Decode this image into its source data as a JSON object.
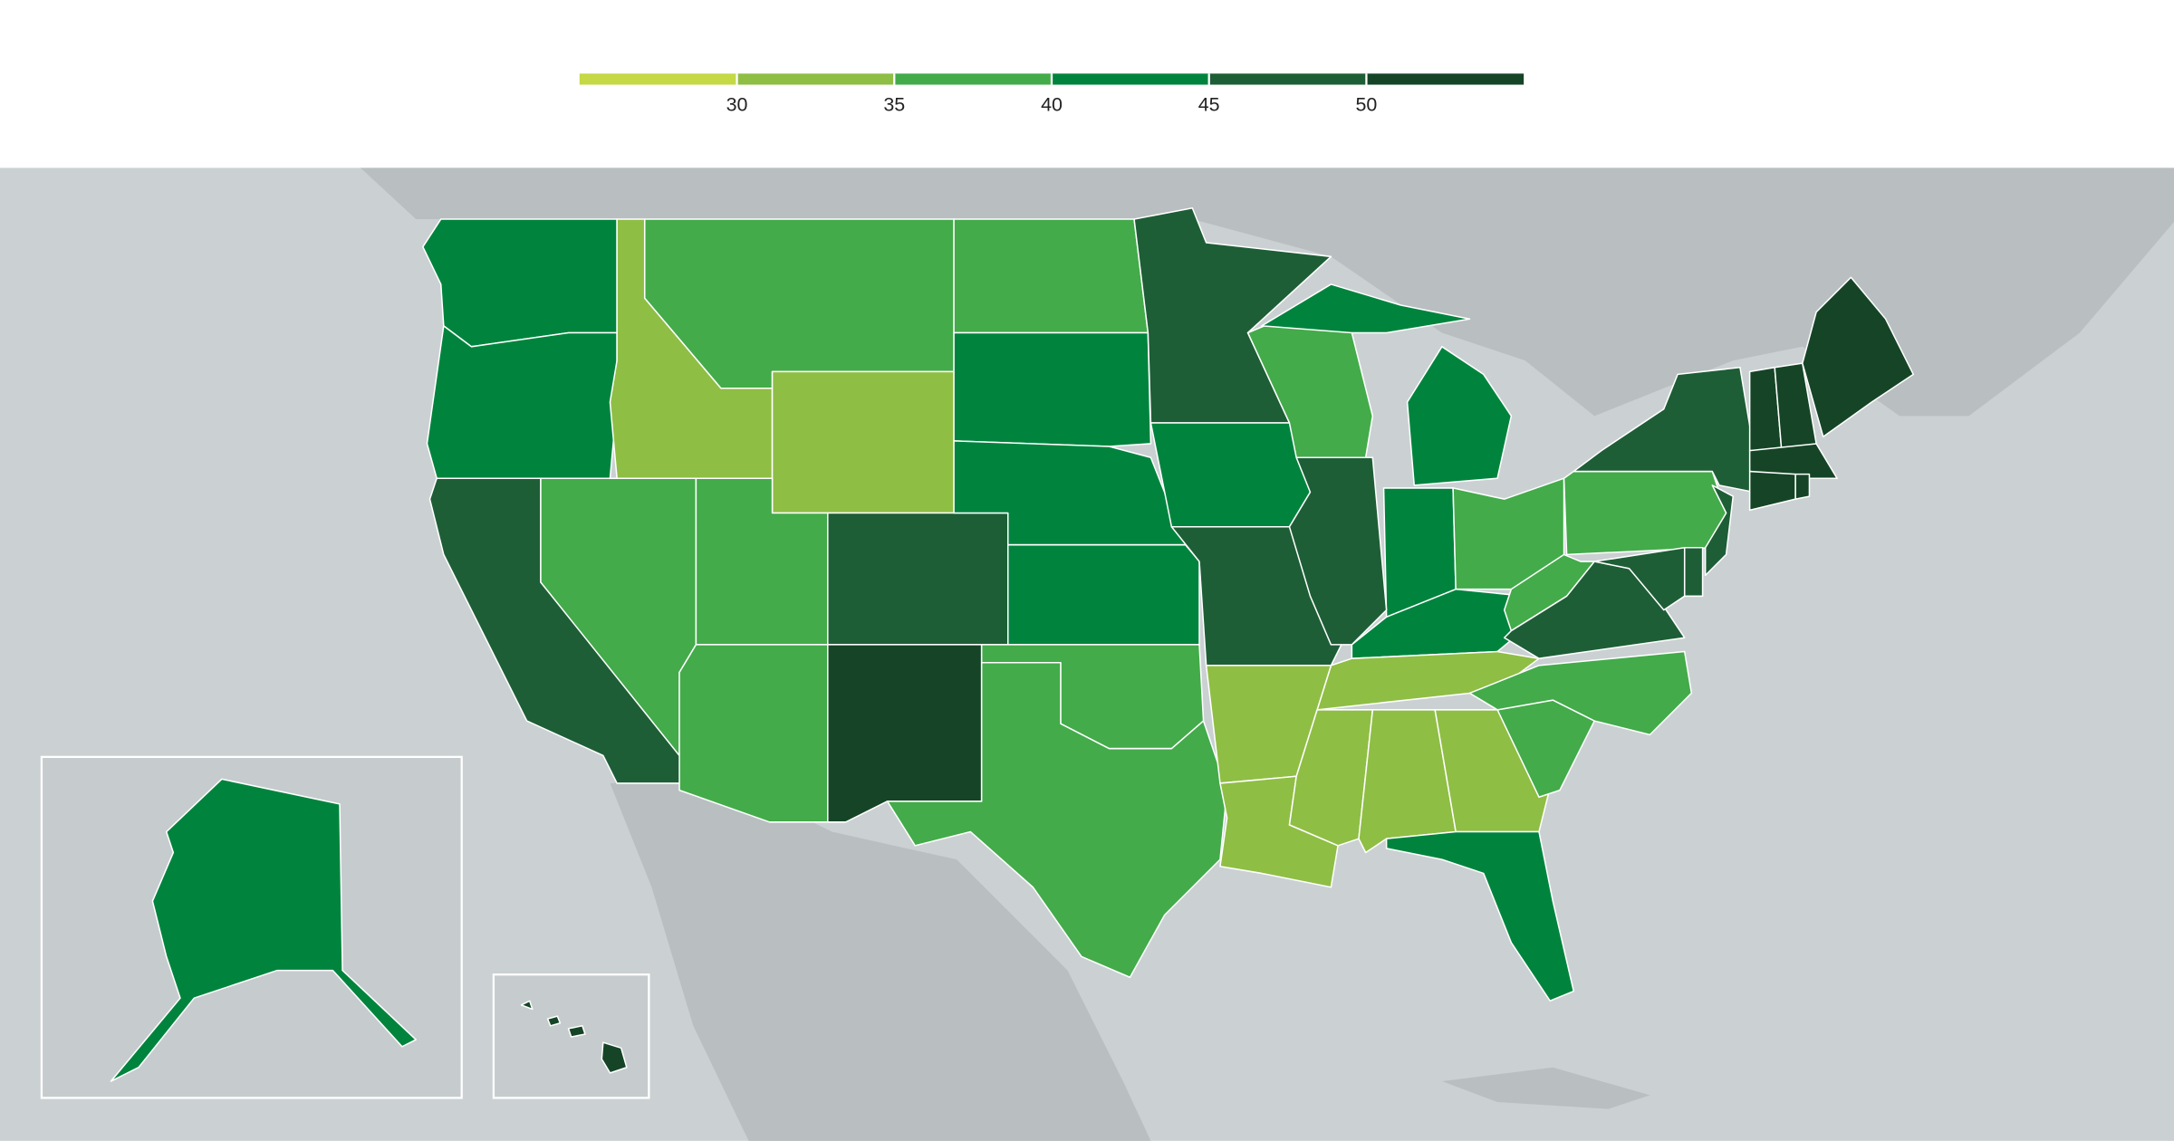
{
  "chart_data": {
    "type": "choropleth",
    "xlim": [
      25,
      55
    ],
    "xticks": [
      30,
      35,
      40,
      45,
      50
    ],
    "colors": [
      "#c5d845",
      "#8fbe44",
      "#43ab4a",
      "#00843d",
      "#1e5e36",
      "#154526"
    ],
    "values": [
      42,
      42,
      47,
      37,
      32,
      37,
      32,
      37,
      37,
      47,
      52,
      37,
      42,
      42,
      42,
      37,
      37,
      47,
      42,
      47,
      37,
      42,
      42,
      37,
      42,
      37,
      32,
      32,
      32,
      32,
      32,
      32,
      42,
      37,
      37,
      47,
      37,
      47,
      47,
      47,
      47,
      47,
      52,
      52,
      52,
      52,
      52,
      52,
      42,
      52
    ]
  }
}
